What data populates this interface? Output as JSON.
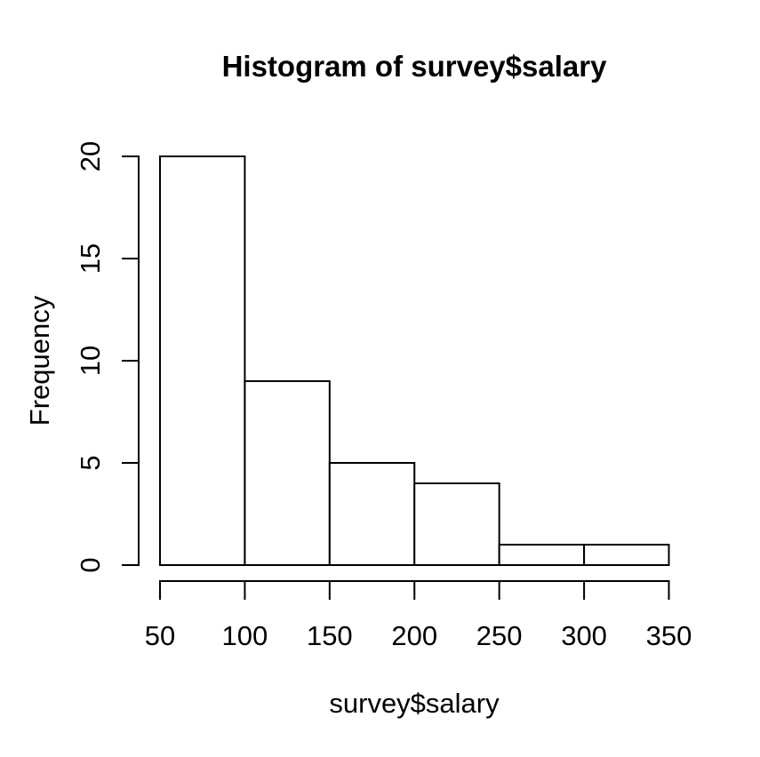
{
  "colors": {
    "background": "#ffffff",
    "foreground": "#000000",
    "bar_fill": "#ffffff",
    "bar_stroke": "#000000"
  },
  "chart_data": {
    "type": "bar",
    "subtype": "histogram",
    "title": "Histogram of survey$salary",
    "xlabel": "survey$salary",
    "ylabel": "Frequency",
    "bins": [
      {
        "range": [
          50,
          100
        ],
        "count": 20
      },
      {
        "range": [
          100,
          150
        ],
        "count": 9
      },
      {
        "range": [
          150,
          200
        ],
        "count": 5
      },
      {
        "range": [
          200,
          250
        ],
        "count": 4
      },
      {
        "range": [
          250,
          300
        ],
        "count": 1
      },
      {
        "range": [
          300,
          350
        ],
        "count": 1
      }
    ],
    "x_ticks": [
      50,
      100,
      150,
      200,
      250,
      300,
      350
    ],
    "y_ticks": [
      0,
      5,
      10,
      15,
      20
    ],
    "xlim": [
      50,
      350
    ],
    "ylim": [
      0,
      20
    ],
    "grid": false,
    "legend": null
  }
}
